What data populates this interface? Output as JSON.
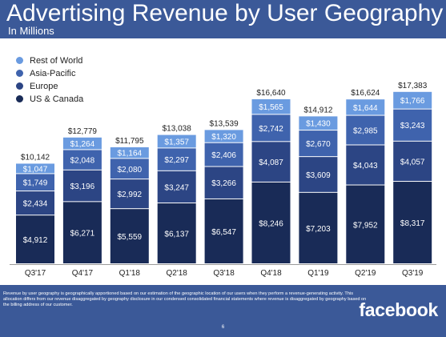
{
  "header": {
    "title": "Advertising Revenue by User Geography",
    "subtitle": "In Millions"
  },
  "colors": {
    "header_bg": "#3b5998",
    "rest_of_world": "#6a9be0",
    "asia_pacific": "#3f63ad",
    "europe": "#2c4584",
    "us_canada": "#192b57"
  },
  "chart_data": {
    "type": "bar",
    "stacked": true,
    "title": "Advertising Revenue by User Geography",
    "subtitle": "In Millions",
    "categories": [
      "Q3'17",
      "Q4'17",
      "Q1'18",
      "Q2'18",
      "Q3'18",
      "Q4'18",
      "Q1'19",
      "Q2'19",
      "Q3'19"
    ],
    "series": [
      {
        "name": "US & Canada",
        "color": "#192b57",
        "values": [
          4912,
          6271,
          5559,
          6137,
          6547,
          8246,
          7203,
          7952,
          8317
        ],
        "labels": [
          "$4,912",
          "$6,271",
          "$5,559",
          "$6,137",
          "$6,547",
          "$8,246",
          "$7,203",
          "$7,952",
          "$8,317"
        ]
      },
      {
        "name": "Europe",
        "color": "#2c4584",
        "values": [
          2434,
          3196,
          2992,
          3247,
          3266,
          4087,
          3609,
          4043,
          4057
        ],
        "labels": [
          "$2,434",
          "$3,196",
          "$2,992",
          "$3,247",
          "$3,266",
          "$4,087",
          "$3,609",
          "$4,043",
          "$4,057"
        ]
      },
      {
        "name": "Asia-Pacific",
        "color": "#3f63ad",
        "values": [
          1749,
          2048,
          2080,
          2297,
          2406,
          2742,
          2670,
          2985,
          3243
        ],
        "labels": [
          "$1,749",
          "$2,048",
          "$2,080",
          "$2,297",
          "$2,406",
          "$2,742",
          "$2,670",
          "$2,985",
          "$3,243"
        ]
      },
      {
        "name": "Rest of World",
        "color": "#6a9be0",
        "values": [
          1047,
          1264,
          1164,
          1357,
          1320,
          1565,
          1430,
          1644,
          1766
        ],
        "labels": [
          "$1,047",
          "$1,264",
          "$1,164",
          "$1,357",
          "$1,320",
          "$1,565",
          "$1,430",
          "$1,644",
          "$1,766"
        ]
      }
    ],
    "totals": [
      10142,
      12779,
      11795,
      13038,
      13539,
      16640,
      14912,
      16624,
      17383
    ],
    "total_labels": [
      "$10,142",
      "$12,779",
      "$11,795",
      "$13,038",
      "$13,539",
      "$16,640",
      "$14,912",
      "$16,624",
      "$17,383"
    ],
    "legend": [
      "Rest of World",
      "Asia-Pacific",
      "Europe",
      "US & Canada"
    ],
    "legend_position": "top-left",
    "grid": false
  },
  "footer": {
    "note": "Revenue by user geography is geographically apportioned based on our estimation of the geographic location of our users when they perform a revenue-generating activity. This allocation differs from our revenue disaggregated by geography disclosure in our condensed consolidated financial statements where revenue is disaggregated by geography based on the billing address of our customer.",
    "brand": "facebook",
    "page": "6"
  }
}
